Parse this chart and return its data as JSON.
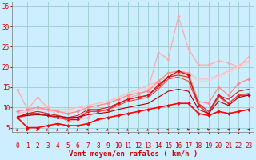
{
  "xlabel": "Vent moyen/en rafales ( km/h )",
  "xlim": [
    -0.5,
    23.5
  ],
  "ylim": [
    4,
    36
  ],
  "yticks": [
    5,
    10,
    15,
    20,
    25,
    30,
    35
  ],
  "xticks": [
    0,
    1,
    2,
    3,
    4,
    5,
    6,
    7,
    8,
    9,
    10,
    11,
    12,
    13,
    14,
    15,
    16,
    17,
    18,
    19,
    20,
    21,
    22,
    23
  ],
  "bg_color": "#cceeff",
  "grid_color": "#99cccc",
  "lines": [
    {
      "x": [
        0,
        1,
        2,
        3,
        4,
        5,
        6,
        7,
        8,
        9,
        10,
        11,
        12,
        13,
        14,
        15,
        16,
        17,
        18,
        19,
        20,
        21,
        22,
        23
      ],
      "y": [
        14.5,
        9.5,
        12.5,
        10.0,
        8.0,
        6.5,
        7.0,
        7.5,
        9.5,
        9.0,
        10.5,
        12.5,
        13.0,
        14.5,
        23.5,
        22.0,
        32.5,
        24.5,
        20.5,
        20.5,
        21.5,
        21.0,
        20.0,
        22.5
      ],
      "color": "#ffaaaa",
      "lw": 0.9,
      "marker": "D",
      "ms": 2.0
    },
    {
      "x": [
        0,
        1,
        2,
        3,
        4,
        5,
        6,
        7,
        8,
        9,
        10,
        11,
        12,
        13,
        14,
        15,
        16,
        17,
        18,
        19,
        20,
        21,
        22,
        23
      ],
      "y": [
        8.5,
        9.0,
        9.5,
        9.5,
        9.5,
        9.5,
        10.0,
        10.5,
        11.0,
        11.5,
        12.5,
        13.5,
        14.5,
        15.5,
        16.5,
        17.5,
        18.5,
        18.5,
        17.0,
        17.0,
        18.0,
        19.0,
        20.5,
        21.5
      ],
      "color": "#ffbbbb",
      "lw": 0.9,
      "marker": null,
      "ms": 0
    },
    {
      "x": [
        0,
        1,
        2,
        3,
        4,
        5,
        6,
        7,
        8,
        9,
        10,
        11,
        12,
        13,
        14,
        15,
        16,
        17,
        18,
        19,
        20,
        21,
        22,
        23
      ],
      "y": [
        8.0,
        8.5,
        9.0,
        9.0,
        9.0,
        9.0,
        9.5,
        10.0,
        10.5,
        11.0,
        12.0,
        13.0,
        14.0,
        15.0,
        16.0,
        17.0,
        18.0,
        18.0,
        16.5,
        16.5,
        17.5,
        18.5,
        20.0,
        21.0
      ],
      "color": "#ffcccc",
      "lw": 0.9,
      "marker": null,
      "ms": 0
    },
    {
      "x": [
        0,
        1,
        2,
        3,
        4,
        5,
        6,
        7,
        8,
        9,
        10,
        11,
        12,
        13,
        14,
        15,
        16,
        17,
        18,
        19,
        20,
        21,
        22,
        23
      ],
      "y": [
        9.0,
        9.5,
        10.0,
        9.5,
        9.0,
        8.5,
        9.0,
        10.0,
        10.5,
        11.0,
        12.0,
        13.0,
        13.5,
        14.0,
        16.5,
        18.5,
        19.0,
        18.5,
        11.5,
        11.0,
        15.0,
        13.0,
        16.0,
        17.0
      ],
      "color": "#ff8888",
      "lw": 0.9,
      "marker": "D",
      "ms": 2.0
    },
    {
      "x": [
        0,
        1,
        2,
        3,
        4,
        5,
        6,
        7,
        8,
        9,
        10,
        11,
        12,
        13,
        14,
        15,
        16,
        17,
        18,
        19,
        20,
        21,
        22,
        23
      ],
      "y": [
        7.5,
        8.5,
        8.5,
        8.0,
        7.5,
        7.0,
        7.0,
        9.0,
        9.0,
        9.5,
        11.0,
        12.0,
        12.5,
        13.0,
        15.5,
        17.5,
        19.0,
        18.0,
        10.5,
        8.5,
        13.0,
        11.0,
        13.0,
        13.0
      ],
      "color": "#dd0000",
      "lw": 0.9,
      "marker": "D",
      "ms": 2.0
    },
    {
      "x": [
        0,
        1,
        2,
        3,
        4,
        5,
        6,
        7,
        8,
        9,
        10,
        11,
        12,
        13,
        14,
        15,
        16,
        17,
        18,
        19,
        20,
        21,
        22,
        23
      ],
      "y": [
        7.5,
        8.5,
        9.0,
        8.5,
        8.0,
        7.5,
        8.0,
        9.5,
        9.5,
        10.0,
        11.0,
        12.0,
        12.5,
        13.0,
        15.0,
        17.5,
        18.0,
        17.5,
        11.0,
        9.0,
        13.0,
        12.0,
        14.0,
        14.5
      ],
      "color": "#cc2222",
      "lw": 0.8,
      "marker": null,
      "ms": 0
    },
    {
      "x": [
        0,
        1,
        2,
        3,
        4,
        5,
        6,
        7,
        8,
        9,
        10,
        11,
        12,
        13,
        14,
        15,
        16,
        17,
        18,
        19,
        20,
        21,
        22,
        23
      ],
      "y": [
        7.5,
        8.0,
        8.5,
        8.0,
        7.5,
        7.0,
        7.5,
        9.0,
        9.0,
        9.5,
        10.5,
        11.5,
        12.0,
        12.5,
        14.5,
        17.0,
        17.5,
        16.5,
        10.5,
        8.5,
        12.5,
        11.0,
        13.0,
        13.5
      ],
      "color": "#ee4444",
      "lw": 0.8,
      "marker": null,
      "ms": 0
    },
    {
      "x": [
        0,
        1,
        2,
        3,
        4,
        5,
        6,
        7,
        8,
        9,
        10,
        11,
        12,
        13,
        14,
        15,
        16,
        17,
        18,
        19,
        20,
        21,
        22,
        23
      ],
      "y": [
        7.5,
        5.0,
        5.0,
        5.5,
        6.0,
        5.5,
        5.5,
        6.0,
        7.0,
        7.5,
        8.0,
        8.5,
        9.0,
        9.5,
        10.0,
        10.5,
        11.0,
        11.0,
        8.5,
        8.0,
        9.0,
        8.5,
        9.0,
        9.5
      ],
      "color": "#ff0000",
      "lw": 1.2,
      "marker": "D",
      "ms": 2.0
    },
    {
      "x": [
        0,
        1,
        2,
        3,
        4,
        5,
        6,
        7,
        8,
        9,
        10,
        11,
        12,
        13,
        14,
        15,
        16,
        17,
        18,
        19,
        20,
        21,
        22,
        23
      ],
      "y": [
        7.8,
        8.0,
        8.2,
        8.0,
        7.8,
        7.5,
        7.6,
        8.2,
        8.5,
        8.8,
        9.5,
        10.0,
        10.5,
        11.0,
        12.5,
        14.0,
        14.5,
        14.0,
        9.5,
        8.5,
        11.5,
        10.5,
        12.5,
        13.0
      ],
      "color": "#aa0000",
      "lw": 0.8,
      "marker": null,
      "ms": 0
    }
  ],
  "arrow_angles": [
    210,
    210,
    225,
    225,
    225,
    225,
    225,
    270,
    270,
    225,
    270,
    225,
    225,
    225,
    270,
    270,
    315,
    315,
    315,
    315,
    315,
    45,
    45,
    45
  ],
  "arrow_color": "#cc0000",
  "label_fontsize": 6.5,
  "tick_fontsize": 5.5
}
